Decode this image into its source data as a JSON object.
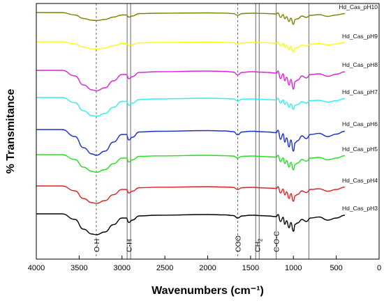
{
  "chart_data": {
    "type": "line",
    "xlabel": "Wavenumbers (cm⁻¹)",
    "ylabel": "% Transmitance",
    "xlim": [
      4000,
      0
    ],
    "x_reversed": true,
    "x_ticks": [
      "4000",
      "3500",
      "3000",
      "2500",
      "2000",
      "1500",
      "1000",
      "500",
      "0"
    ],
    "grid": false,
    "legend": "inline labels at the right end of each trace",
    "series": [
      {
        "name": "Hd_Cas_pH10",
        "color": "#808000",
        "x": [
          4000,
          3700,
          3550,
          3450,
          3350,
          3300,
          3200,
          3100,
          3000,
          2950,
          2920,
          2880,
          2800,
          2600,
          2000,
          1800,
          1700,
          1650,
          1600,
          1500,
          1450,
          1400,
          1300,
          1200,
          1180,
          1150,
          1120,
          1100,
          1080,
          1050,
          1030,
          1000,
          980,
          950,
          900,
          850,
          800,
          700,
          600,
          500,
          400
        ],
        "y": [
          0.0,
          0.0,
          3.5,
          8.5,
          11.0,
          11.5,
          10.0,
          6.5,
          3.5,
          3.5,
          6.5,
          5.0,
          1.5,
          1.0,
          0.5,
          0.8,
          1.5,
          4.0,
          1.5,
          1.0,
          1.0,
          1.2,
          1.5,
          2.0,
          0.5,
          7.0,
          3.0,
          9.0,
          6.0,
          13.0,
          8.0,
          17.0,
          10.0,
          9.0,
          5.0,
          7.0,
          4.0,
          3.0,
          5.5,
          3.5,
          1.5
        ]
      },
      {
        "name": "Hd_Cas_pH9",
        "color": "#ffff00",
        "x": [
          4000,
          3700,
          3550,
          3450,
          3350,
          3300,
          3200,
          3100,
          3000,
          2950,
          2920,
          2880,
          2800,
          2600,
          2000,
          1800,
          1700,
          1650,
          1600,
          1500,
          1450,
          1400,
          1300,
          1200,
          1180,
          1150,
          1120,
          1100,
          1080,
          1050,
          1030,
          1000,
          980,
          950,
          900,
          850,
          800,
          700,
          600,
          500,
          400
        ],
        "y": [
          0.0,
          0.0,
          3.0,
          7.5,
          10.0,
          10.5,
          9.0,
          5.5,
          2.5,
          3.0,
          5.5,
          4.0,
          1.5,
          1.0,
          0.5,
          0.8,
          1.5,
          3.5,
          1.5,
          1.0,
          1.0,
          1.2,
          1.5,
          2.0,
          0.5,
          6.0,
          2.5,
          8.0,
          5.0,
          11.0,
          7.0,
          15.0,
          9.0,
          8.0,
          4.5,
          6.0,
          3.5,
          2.5,
          4.5,
          3.0,
          1.0
        ]
      },
      {
        "name": "Hd_Cas_pH8",
        "color": "#e020e0",
        "x": [
          4000,
          3700,
          3550,
          3450,
          3350,
          3300,
          3200,
          3100,
          3000,
          2950,
          2920,
          2880,
          2800,
          2600,
          2000,
          1800,
          1700,
          1650,
          1600,
          1500,
          1450,
          1400,
          1300,
          1200,
          1180,
          1150,
          1120,
          1100,
          1080,
          1050,
          1030,
          1000,
          980,
          950,
          900,
          850,
          800,
          700,
          600,
          500,
          400
        ],
        "y": [
          0.0,
          0.0,
          8.0,
          21.0,
          28.0,
          29.5,
          25.0,
          15.0,
          6.0,
          6.0,
          12.0,
          9.0,
          3.0,
          2.0,
          1.0,
          1.5,
          2.5,
          6.5,
          3.0,
          2.0,
          2.0,
          2.5,
          3.0,
          4.0,
          1.0,
          12.0,
          5.0,
          15.0,
          10.0,
          21.0,
          13.0,
          27.0,
          16.0,
          14.0,
          8.0,
          11.0,
          6.0,
          5.0,
          8.5,
          5.5,
          2.0
        ]
      },
      {
        "name": "Hd_Cas_pH7",
        "color": "#30f0f0",
        "x": [
          4000,
          3700,
          3550,
          3450,
          3350,
          3300,
          3200,
          3100,
          3000,
          2950,
          2920,
          2880,
          2800,
          2600,
          2000,
          1800,
          1700,
          1650,
          1600,
          1500,
          1450,
          1400,
          1300,
          1200,
          1180,
          1150,
          1120,
          1100,
          1080,
          1050,
          1030,
          1000,
          980,
          950,
          900,
          850,
          800,
          700,
          600,
          500,
          400
        ],
        "y": [
          0.0,
          0.0,
          7.5,
          19.0,
          26.0,
          27.0,
          23.0,
          14.0,
          5.5,
          5.5,
          11.0,
          8.0,
          3.0,
          2.0,
          1.0,
          1.5,
          2.0,
          5.0,
          2.5,
          2.0,
          2.0,
          2.5,
          3.0,
          3.5,
          1.0,
          8.0,
          3.5,
          10.0,
          7.0,
          14.0,
          9.0,
          17.0,
          11.0,
          10.0,
          6.0,
          8.0,
          4.5,
          4.0,
          6.5,
          4.5,
          1.5
        ]
      },
      {
        "name": "Hd_Cas_pH6",
        "color": "#1830c8",
        "x": [
          4000,
          3700,
          3550,
          3450,
          3350,
          3300,
          3200,
          3100,
          3000,
          2950,
          2920,
          2880,
          2800,
          2600,
          2000,
          1800,
          1700,
          1650,
          1600,
          1500,
          1450,
          1400,
          1300,
          1200,
          1180,
          1150,
          1120,
          1100,
          1080,
          1050,
          1030,
          1000,
          980,
          950,
          900,
          850,
          800,
          700,
          600,
          500,
          400
        ],
        "y": [
          0.0,
          0.0,
          10.0,
          26.0,
          35.0,
          37.0,
          31.0,
          18.0,
          7.0,
          7.0,
          15.0,
          11.0,
          3.5,
          2.5,
          1.5,
          2.0,
          3.0,
          7.5,
          3.5,
          2.5,
          2.5,
          3.0,
          3.5,
          4.5,
          1.0,
          14.0,
          6.0,
          18.0,
          12.0,
          25.0,
          15.0,
          31.0,
          19.0,
          16.0,
          9.0,
          13.0,
          7.0,
          5.5,
          10.0,
          6.5,
          2.5
        ]
      },
      {
        "name": "Hd_Cas_pH5",
        "color": "#20e020",
        "x": [
          4000,
          3700,
          3550,
          3450,
          3350,
          3300,
          3200,
          3100,
          3000,
          2950,
          2920,
          2880,
          2800,
          2600,
          2000,
          1800,
          1700,
          1650,
          1600,
          1500,
          1450,
          1400,
          1300,
          1200,
          1180,
          1150,
          1120,
          1100,
          1080,
          1050,
          1030,
          1000,
          980,
          950,
          900,
          850,
          800,
          700,
          600,
          500,
          400
        ],
        "y": [
          0.0,
          0.0,
          7.0,
          18.0,
          24.0,
          25.5,
          21.5,
          13.0,
          5.0,
          5.0,
          10.5,
          7.5,
          2.5,
          1.8,
          1.0,
          1.5,
          2.0,
          5.0,
          2.5,
          2.0,
          2.0,
          2.5,
          3.0,
          3.5,
          1.0,
          10.0,
          4.5,
          13.0,
          8.5,
          18.0,
          11.0,
          22.0,
          14.0,
          12.0,
          7.0,
          9.5,
          5.0,
          4.0,
          7.5,
          5.0,
          1.5
        ]
      },
      {
        "name": "Hd_Cas_pH4",
        "color": "#e02020",
        "x": [
          4000,
          3700,
          3550,
          3450,
          3350,
          3300,
          3200,
          3100,
          3000,
          2950,
          2920,
          2880,
          2800,
          2600,
          2000,
          1800,
          1700,
          1650,
          1600,
          1500,
          1450,
          1400,
          1300,
          1200,
          1180,
          1150,
          1120,
          1100,
          1080,
          1050,
          1030,
          1000,
          980,
          950,
          900,
          850,
          800,
          700,
          600,
          500,
          400
        ],
        "y": [
          0.0,
          0.0,
          7.0,
          18.0,
          24.0,
          25.0,
          21.0,
          12.5,
          5.0,
          5.0,
          10.0,
          7.5,
          2.5,
          1.8,
          1.0,
          1.5,
          2.0,
          5.0,
          2.5,
          2.0,
          2.0,
          2.5,
          3.0,
          3.5,
          1.0,
          10.0,
          4.5,
          13.0,
          8.5,
          18.0,
          11.0,
          22.0,
          14.0,
          12.0,
          7.0,
          9.5,
          5.0,
          4.0,
          7.5,
          5.0,
          1.5
        ]
      },
      {
        "name": "Hd_Cas_pH3",
        "color": "#000000",
        "x": [
          4000,
          3700,
          3550,
          3450,
          3350,
          3300,
          3200,
          3100,
          3000,
          2950,
          2920,
          2880,
          2800,
          2600,
          2000,
          1800,
          1700,
          1650,
          1600,
          1500,
          1450,
          1400,
          1300,
          1200,
          1180,
          1150,
          1120,
          1100,
          1080,
          1050,
          1030,
          1000,
          980,
          950,
          900,
          850,
          800,
          700,
          600,
          500,
          400
        ],
        "y": [
          0.0,
          0.0,
          8.0,
          22.0,
          29.0,
          30.0,
          26.0,
          15.5,
          6.0,
          6.0,
          12.5,
          9.0,
          3.0,
          2.0,
          1.0,
          1.5,
          2.5,
          6.0,
          3.0,
          2.0,
          2.0,
          2.5,
          3.0,
          4.0,
          1.0,
          11.0,
          5.0,
          15.0,
          10.0,
          20.0,
          12.5,
          25.0,
          15.0,
          13.0,
          8.0,
          11.0,
          6.0,
          4.5,
          9.0,
          6.0,
          2.0
        ]
      }
    ],
    "annotations": [
      {
        "label": "O-H",
        "x": 3300,
        "style": "dashed"
      },
      {
        "label": "C-H",
        "x": 2920,
        "style": "double-solid"
      },
      {
        "label": "COO",
        "x": 1650,
        "style": "dashed"
      },
      {
        "label": "CH2",
        "x": 1420,
        "style": "double-solid"
      },
      {
        "label": "C-O-C",
        "x": 1200,
        "style": "solid"
      },
      {
        "label": "",
        "x": 820,
        "style": "solid"
      }
    ]
  }
}
